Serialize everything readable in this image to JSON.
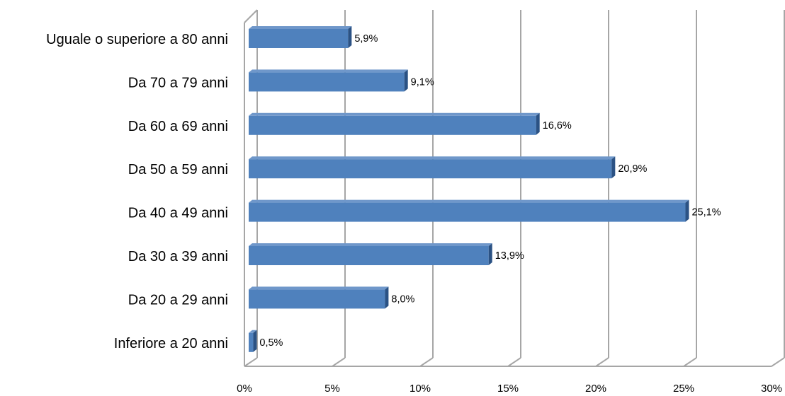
{
  "chart_data": {
    "type": "bar",
    "orientation": "horizontal",
    "style": "3d",
    "categories": [
      "Uguale o superiore a 80 anni",
      "Da 70 a 79 anni",
      "Da 60 a 69 anni",
      "Da 50 a 59 anni",
      "Da 40 a 49 anni",
      "Da 30 a 39 anni",
      "Da 20 a 29 anni",
      "Inferiore a 20 anni"
    ],
    "values": [
      5.9,
      9.1,
      16.6,
      20.9,
      25.1,
      13.9,
      8.0,
      0.5
    ],
    "data_labels": [
      "5,9%",
      "9,1%",
      "16,6%",
      "20,9%",
      "25,1%",
      "13,9%",
      "8,0%",
      "0,5%"
    ],
    "x_ticks": [
      0,
      5,
      10,
      15,
      20,
      25,
      30
    ],
    "x_tick_labels": [
      "0%",
      "5%",
      "10%",
      "15%",
      "20%",
      "25%",
      "30%"
    ],
    "xlim": [
      0,
      30
    ],
    "title": "",
    "xlabel": "",
    "ylabel": "",
    "grid": "vertical",
    "legend": "none",
    "colors": {
      "bar_front": "#4F81BD",
      "bar_top": "#6F97CA",
      "bar_side": "#2B5284",
      "gridline": "#A6A6A6",
      "floor": "#A6A6A6",
      "text": "#000000"
    }
  }
}
